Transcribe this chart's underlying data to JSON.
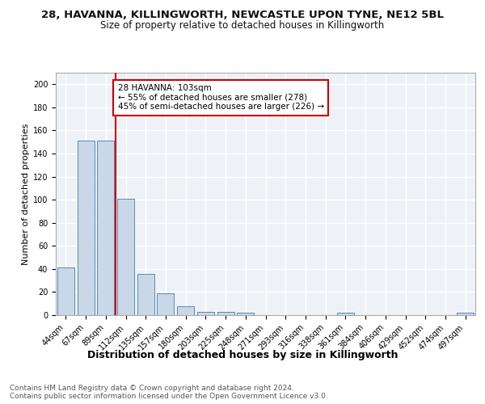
{
  "title_line1": "28, HAVANNA, KILLINGWORTH, NEWCASTLE UPON TYNE, NE12 5BL",
  "title_line2": "Size of property relative to detached houses in Killingworth",
  "xlabel": "Distribution of detached houses by size in Killingworth",
  "ylabel": "Number of detached properties",
  "categories": [
    "44sqm",
    "67sqm",
    "89sqm",
    "112sqm",
    "135sqm",
    "157sqm",
    "180sqm",
    "203sqm",
    "225sqm",
    "248sqm",
    "271sqm",
    "293sqm",
    "316sqm",
    "338sqm",
    "361sqm",
    "384sqm",
    "406sqm",
    "429sqm",
    "452sqm",
    "474sqm",
    "497sqm"
  ],
  "values": [
    41,
    151,
    151,
    101,
    36,
    19,
    8,
    3,
    3,
    2,
    0,
    0,
    0,
    0,
    2,
    0,
    0,
    0,
    0,
    0,
    2
  ],
  "bar_color": "#c8d8e8",
  "bar_edge_color": "#5a8ab0",
  "vline_x": 2.5,
  "vline_color": "#cc0000",
  "annotation_text": "28 HAVANNA: 103sqm\n← 55% of detached houses are smaller (278)\n45% of semi-detached houses are larger (226) →",
  "annotation_box_color": "#ffffff",
  "annotation_box_edge_color": "#cc0000",
  "ylim": [
    0,
    210
  ],
  "yticks": [
    0,
    20,
    40,
    60,
    80,
    100,
    120,
    140,
    160,
    180,
    200
  ],
  "bg_color": "#eef2f7",
  "grid_color": "#ffffff",
  "footer_text": "Contains HM Land Registry data © Crown copyright and database right 2024.\nContains public sector information licensed under the Open Government Licence v3.0.",
  "title_fontsize": 9.5,
  "subtitle_fontsize": 8.5,
  "xlabel_fontsize": 9,
  "ylabel_fontsize": 8,
  "tick_fontsize": 7,
  "annotation_fontsize": 7.5,
  "footer_fontsize": 6.5
}
